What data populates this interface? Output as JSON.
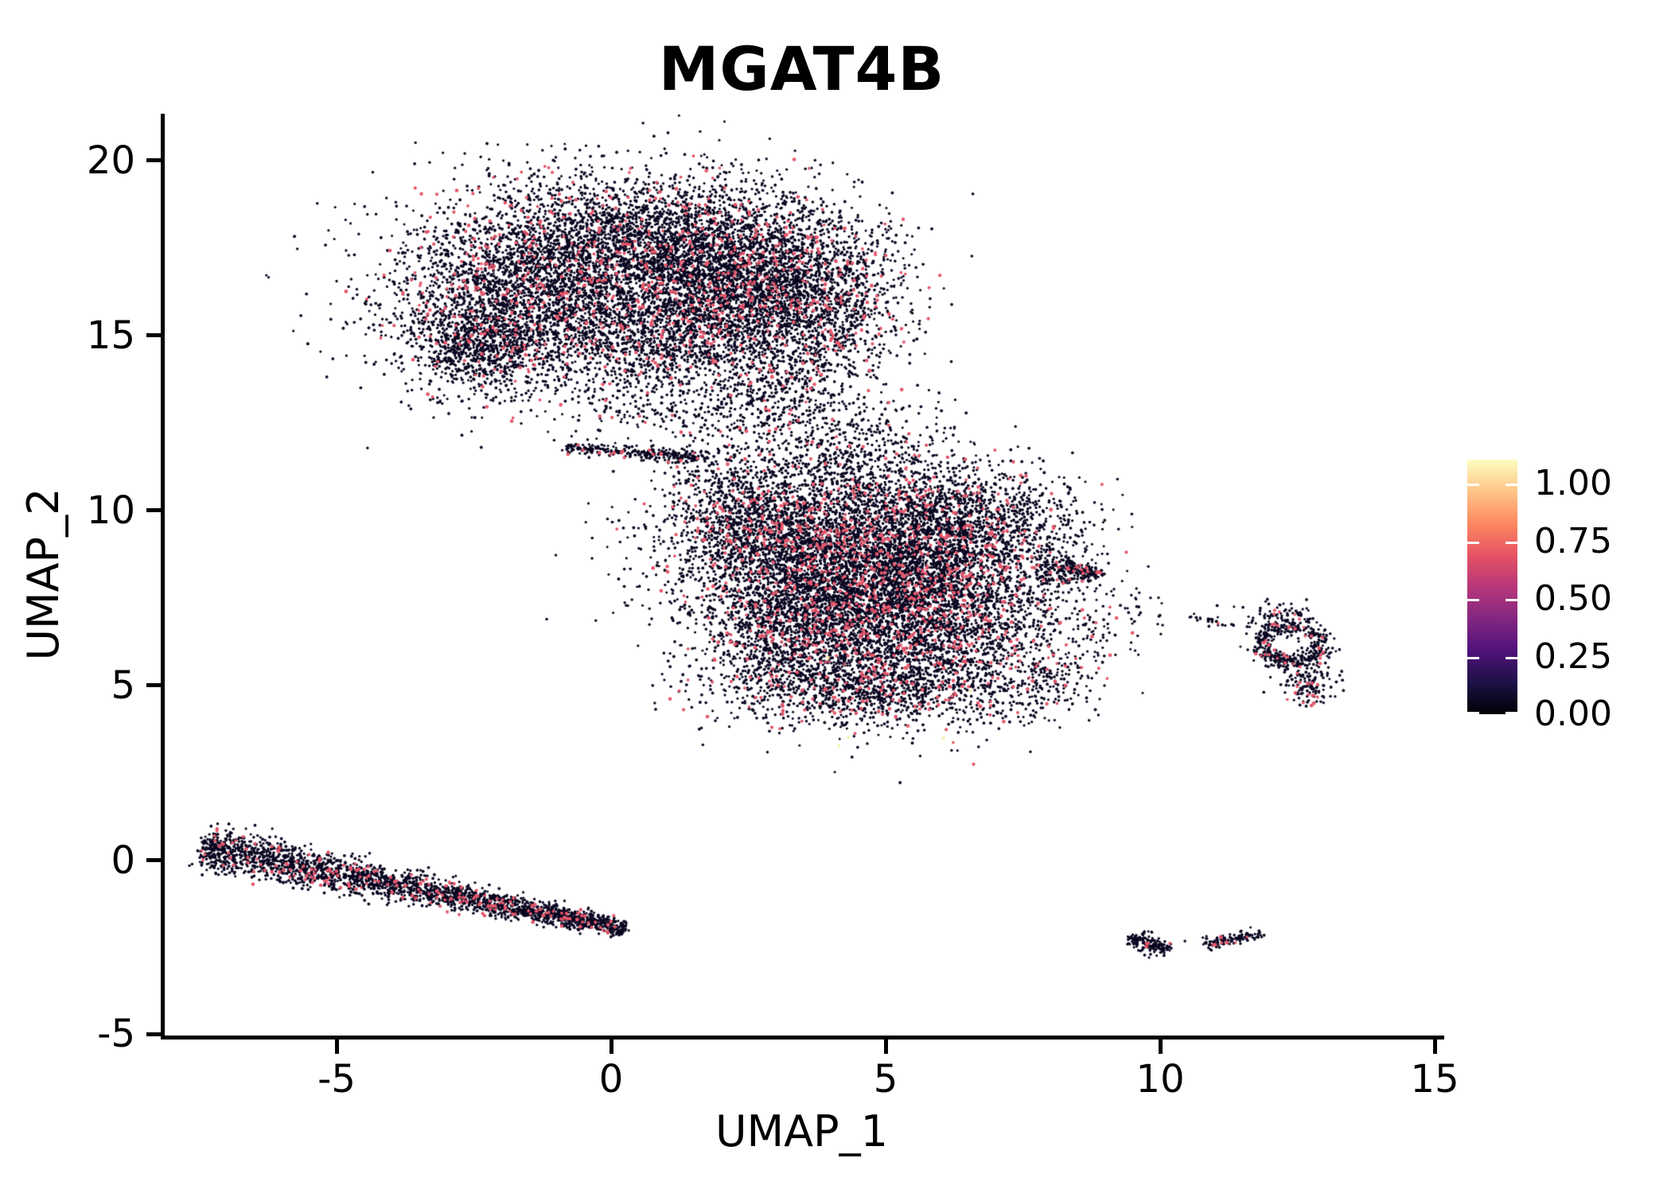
{
  "title": "MGAT4B",
  "axes": {
    "x": {
      "label": "UMAP_1",
      "ticks": [
        -5,
        0,
        5,
        10,
        15
      ],
      "range": [
        -8.16,
        15.1
      ]
    },
    "y": {
      "label": "UMAP_2",
      "ticks": [
        20,
        15,
        10,
        5,
        0,
        -5
      ],
      "range": [
        -5.0,
        21.34
      ]
    }
  },
  "colorbar": {
    "tick_labels": [
      "1.00",
      "0.75",
      "0.50",
      "0.25",
      "0.00"
    ],
    "tick_values": [
      1.0,
      0.75,
      0.5,
      0.25,
      0.0
    ],
    "vmax": 1.104,
    "gradient_stops": [
      [
        "0.000",
        "#000004"
      ],
      [
        "0.125",
        "#1d1147"
      ],
      [
        "0.250",
        "#51127c"
      ],
      [
        "0.375",
        "#832681"
      ],
      [
        "0.500",
        "#b73779"
      ],
      [
        "0.625",
        "#e75263"
      ],
      [
        "0.750",
        "#fc8961"
      ],
      [
        "0.875",
        "#fec488"
      ],
      [
        "1.000",
        "#fcfdbf"
      ]
    ]
  },
  "style": {
    "color_low": "#0a0620",
    "color_mid": "#e5566b",
    "color_high": "#f6eda6",
    "radius_low": 1.7,
    "radius_mid": 2.05,
    "radius_high": 2.0
  },
  "chart_data": {
    "type": "scatter",
    "description": "UMAP embedding feature plot of MGAT4B expression; dense black points (zero expression) with scattered mid-expression pink points and rare pale-yellow high-expression points.",
    "seed": 42,
    "x_range": [
      -8.16,
      15.1
    ],
    "y_range": [
      -5.0,
      21.34
    ],
    "clusters": [
      {
        "kind": "gauss",
        "cx": -1.7,
        "cy": 16.2,
        "sx": 1.25,
        "sy": 1.3,
        "n": 2400,
        "red": 0.085
      },
      {
        "kind": "gauss",
        "cx": 0.6,
        "cy": 17.6,
        "sx": 1.5,
        "sy": 1.05,
        "n": 2800,
        "red": 0.085
      },
      {
        "kind": "gauss",
        "cx": 2.2,
        "cy": 16.6,
        "sx": 1.15,
        "sy": 1.15,
        "n": 2200,
        "red": 0.09
      },
      {
        "kind": "gauss",
        "cx": 3.55,
        "cy": 15.9,
        "sx": 0.95,
        "sy": 1.2,
        "n": 1500,
        "red": 0.1
      },
      {
        "kind": "gauss",
        "cx": 0.9,
        "cy": 14.9,
        "sx": 1.3,
        "sy": 0.85,
        "n": 1300,
        "red": 0.08
      },
      {
        "kind": "gauss",
        "cx": -2.45,
        "cy": 14.7,
        "sx": 0.62,
        "sy": 0.72,
        "n": 750,
        "red": 0.05
      },
      {
        "kind": "gauss",
        "cx": 2.9,
        "cy": 13.1,
        "sx": 0.8,
        "sy": 0.75,
        "n": 430,
        "red": 0.07
      },
      {
        "kind": "gauss",
        "cx": 4.4,
        "cy": 11.6,
        "sx": 0.75,
        "sy": 0.7,
        "n": 330,
        "red": 0.06
      },
      {
        "kind": "band",
        "x0": -0.8,
        "y0": 11.8,
        "x1": 1.75,
        "y1": 11.5,
        "sigma": 0.1,
        "taper": [
          1.0,
          1.0
        ],
        "bias": 1.0,
        "n": 280,
        "red": 0.05
      },
      {
        "kind": "gauss",
        "cx": 0.8,
        "cy": 12.75,
        "sx": 0.8,
        "sy": 0.45,
        "n": 130,
        "red": 0.05
      },
      {
        "kind": "gauss",
        "cx": 2.0,
        "cy": 10.9,
        "sx": 0.55,
        "sy": 0.55,
        "n": 160,
        "red": 0.06
      },
      {
        "kind": "gauss",
        "cx": 5.6,
        "cy": 12.4,
        "sx": 0.5,
        "sy": 0.6,
        "n": 30,
        "red": 0.0
      },
      {
        "kind": "gauss",
        "cx": 4.3,
        "cy": 8.7,
        "sx": 1.5,
        "sy": 1.3,
        "n": 4100,
        "red": 0.105
      },
      {
        "kind": "gauss",
        "cx": 5.8,
        "cy": 7.1,
        "sx": 1.35,
        "sy": 1.3,
        "n": 3200,
        "red": 0.105
      },
      {
        "kind": "gauss",
        "cx": 3.35,
        "cy": 6.4,
        "sx": 0.95,
        "sy": 1.15,
        "n": 1500,
        "red": 0.1
      },
      {
        "kind": "gauss",
        "cx": 2.7,
        "cy": 9.6,
        "sx": 0.85,
        "sy": 0.9,
        "n": 950,
        "red": 0.1
      },
      {
        "kind": "gauss",
        "cx": 6.4,
        "cy": 9.7,
        "sx": 0.95,
        "sy": 0.8,
        "n": 1150,
        "red": 0.1
      },
      {
        "kind": "gauss",
        "cx": 4.9,
        "cy": 4.9,
        "sx": 1.25,
        "sy": 0.6,
        "n": 850,
        "red": 0.12
      },
      {
        "kind": "band",
        "x0": 7.75,
        "y0": 8.35,
        "x1": 8.95,
        "y1": 8.2,
        "sigma": 0.3,
        "taper": [
          1.0,
          0.15
        ],
        "bias": 1.0,
        "n": 240,
        "red": 0.08
      },
      {
        "kind": "gauss",
        "cx": 8.7,
        "cy": 6.2,
        "sx": 0.25,
        "sy": 0.5,
        "n": 45,
        "red": 0.05
      },
      {
        "kind": "gauss",
        "cx": 7.8,
        "cy": 5.0,
        "sx": 0.45,
        "sy": 0.4,
        "n": 120,
        "red": 0.1
      },
      {
        "kind": "ring",
        "cx": 12.4,
        "cy": 6.2,
        "r": 0.55,
        "sr": 0.12,
        "n": 380,
        "red": 0.08
      },
      {
        "kind": "gauss",
        "cx": 12.7,
        "cy": 5.05,
        "sx": 0.27,
        "sy": 0.38,
        "n": 160,
        "red": 0.08
      },
      {
        "kind": "band",
        "x0": 10.6,
        "y0": 6.95,
        "x1": 11.85,
        "y1": 6.6,
        "sigma": 0.08,
        "taper": [
          1.0,
          1.0
        ],
        "bias": 1.0,
        "n": 30,
        "red": 0.1
      },
      {
        "kind": "gauss",
        "cx": 12.15,
        "cy": 6.95,
        "sx": 0.3,
        "sy": 0.2,
        "n": 90,
        "red": 0.08
      },
      {
        "kind": "band",
        "x0": -7.45,
        "y0": 0.4,
        "x1": 0.25,
        "y1": -1.95,
        "sigma": 0.2,
        "taper": [
          1.55,
          0.55
        ],
        "bias": 1.1,
        "n": 2550,
        "red": 0.085
      },
      {
        "kind": "band",
        "x0": 9.45,
        "y0": -2.2,
        "x1": 10.12,
        "y1": -2.58,
        "sigma": 0.115,
        "taper": [
          1.0,
          1.0
        ],
        "bias": 1.0,
        "n": 150,
        "red": 0.04
      },
      {
        "kind": "band",
        "x0": 10.85,
        "y0": -2.38,
        "x1": 11.78,
        "y1": -2.12,
        "sigma": 0.075,
        "taper": [
          1.0,
          1.0
        ],
        "bias": 1.0,
        "n": 125,
        "red": 0.05
      },
      {
        "kind": "gauss",
        "cx": 9.7,
        "cy": 6.9,
        "sx": 0.3,
        "sy": 0.5,
        "n": 12,
        "red": 0.0
      }
    ],
    "special_points": {
      "high": [
        [
          3.95,
          5.8
        ],
        [
          4.32,
          3.52
        ],
        [
          6.05,
          3.5
        ],
        [
          6.55,
          4.85
        ],
        [
          4.15,
          3.28
        ]
      ],
      "mid": [
        [
          6.6,
          2.75
        ],
        [
          -0.1,
          13.15
        ]
      ],
      "low": [
        [
          10.45,
          -2.3
        ],
        [
          0.15,
          12.85
        ],
        [
          -1.35,
          12.7
        ],
        [
          9.55,
          7.5
        ],
        [
          6.2,
          3.15
        ],
        [
          1.9,
          12.35
        ],
        [
          2.4,
          12.55
        ]
      ]
    }
  }
}
